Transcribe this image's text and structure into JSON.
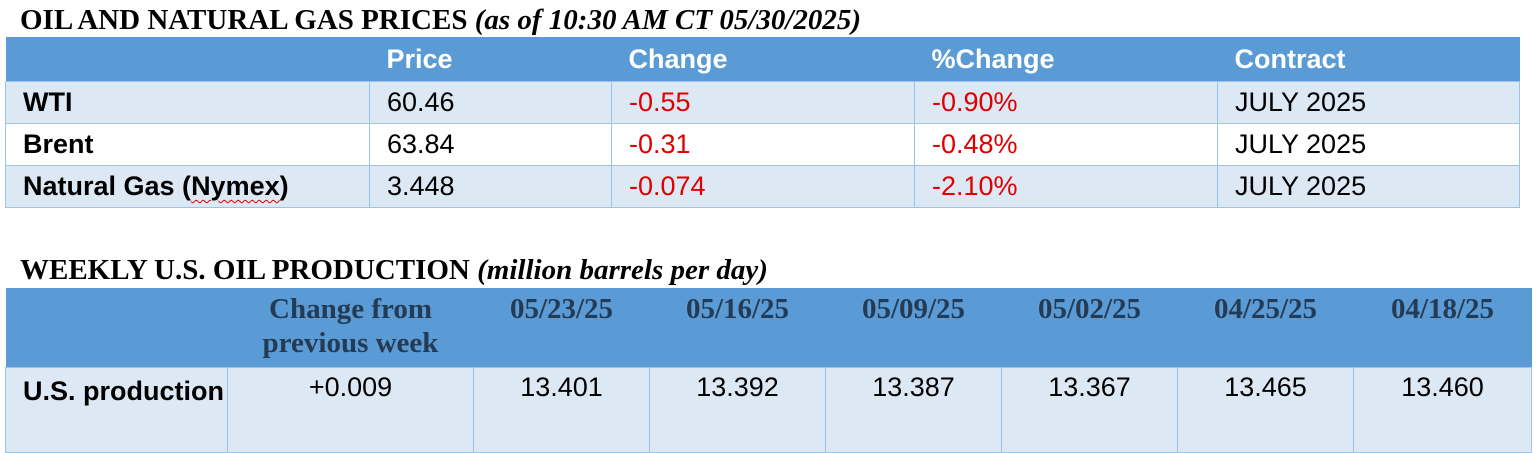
{
  "prices_section": {
    "title": "OIL AND NATURAL GAS PRICES",
    "subtitle": "(as of 10:30 AM CT 05/30/2025)",
    "columns": [
      "",
      "Price",
      "Change",
      "%Change",
      "Contract"
    ],
    "rows": [
      {
        "name_pre": "Natural Gas (",
        "name_mid": "",
        "name_post": "",
        "name": "WTI",
        "price": "60.46",
        "change": "-0.55",
        "pct_change": "-0.90%",
        "contract": "JULY 2025"
      },
      {
        "name": "Brent",
        "price": "63.84",
        "change": "-0.31",
        "pct_change": "-0.48%",
        "contract": "JULY 2025"
      },
      {
        "name_pre": "Natural Gas (",
        "name_mid": "Nymex",
        "name_post": ")",
        "price": "3.448",
        "change": "-0.074",
        "pct_change": "-2.10%",
        "contract": "JULY 2025"
      }
    ]
  },
  "production_section": {
    "title": "WEEKLY U.S. OIL PRODUCTION",
    "subtitle": "(million barrels per day)",
    "columns": [
      "",
      "Change from previous week",
      "05/23/25",
      "05/16/25",
      "05/09/25",
      "05/02/25",
      "04/25/25",
      "04/18/25"
    ],
    "row": {
      "name": "U.S. production",
      "values": [
        "+0.009",
        "13.401",
        "13.392",
        "13.387",
        "13.367",
        "13.465",
        "13.460"
      ]
    }
  },
  "colors": {
    "header_bg": "#5b9bd5",
    "row_bg": "#dde8f5",
    "negative": "#e00000"
  }
}
